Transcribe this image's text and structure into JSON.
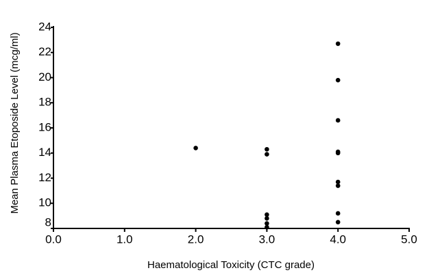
{
  "chart_data": {
    "type": "scatter",
    "x_label": "Haematological Toxicity (CTC grade)",
    "y_label": "Mean Plasma Etoposide Level (mcg/ml)",
    "x": [
      2,
      3,
      3,
      3,
      3,
      3,
      3,
      4,
      4,
      4,
      4,
      4,
      4,
      4,
      4,
      4
    ],
    "values": [
      14.4,
      14.3,
      13.9,
      9.1,
      8.8,
      8.4,
      8.1,
      22.7,
      19.8,
      16.6,
      14.1,
      14.0,
      11.7,
      11.4,
      9.2,
      8.5
    ],
    "color": "#000000",
    "xlim": [
      0,
      5
    ],
    "xticks": [
      {
        "value": 0,
        "label": "0.0"
      },
      {
        "value": 1,
        "label": "1.0"
      },
      {
        "value": 2,
        "label": "2.0"
      },
      {
        "value": 3,
        "label": "3.0"
      },
      {
        "value": 4,
        "label": "4.0"
      },
      {
        "value": 5,
        "label": "5.0"
      }
    ],
    "ylim": [
      8,
      24
    ],
    "yticks": [
      8,
      10,
      12,
      14,
      16,
      18,
      20,
      22,
      24
    ]
  }
}
